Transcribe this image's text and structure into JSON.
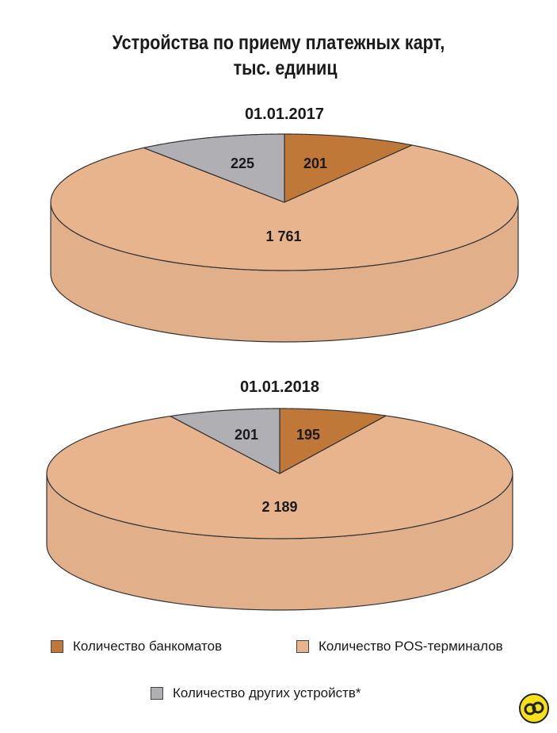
{
  "title_line1": "Устройства по приему платежных карт,",
  "title_line2": "тыс. единиц",
  "colors": {
    "atm": "#c07838",
    "pos": "#e8b48e",
    "other": "#b0b0b4",
    "outline": "#333333"
  },
  "chart_data": [
    {
      "type": "pie",
      "title": "01.01.2017",
      "slices": [
        {
          "label": "Количество банкоматов",
          "value": 201
        },
        {
          "label": "Количество POS-терминалов",
          "value": 1761
        },
        {
          "label": "Количество других устройств*",
          "value": 225
        }
      ],
      "value_labels": [
        "201",
        "1 761",
        "225"
      ]
    },
    {
      "type": "pie",
      "title": "01.01.2018",
      "slices": [
        {
          "label": "Количество банкоматов",
          "value": 195
        },
        {
          "label": "Количество POS-терминалов",
          "value": 2189
        },
        {
          "label": "Количество других устройств*",
          "value": 201
        }
      ],
      "value_labels": [
        "195",
        "2 189",
        "201"
      ]
    }
  ],
  "legend": {
    "atm": "Количество банкоматов",
    "pos": "Количество POS-терминалов",
    "other": "Количество других устройств*"
  }
}
